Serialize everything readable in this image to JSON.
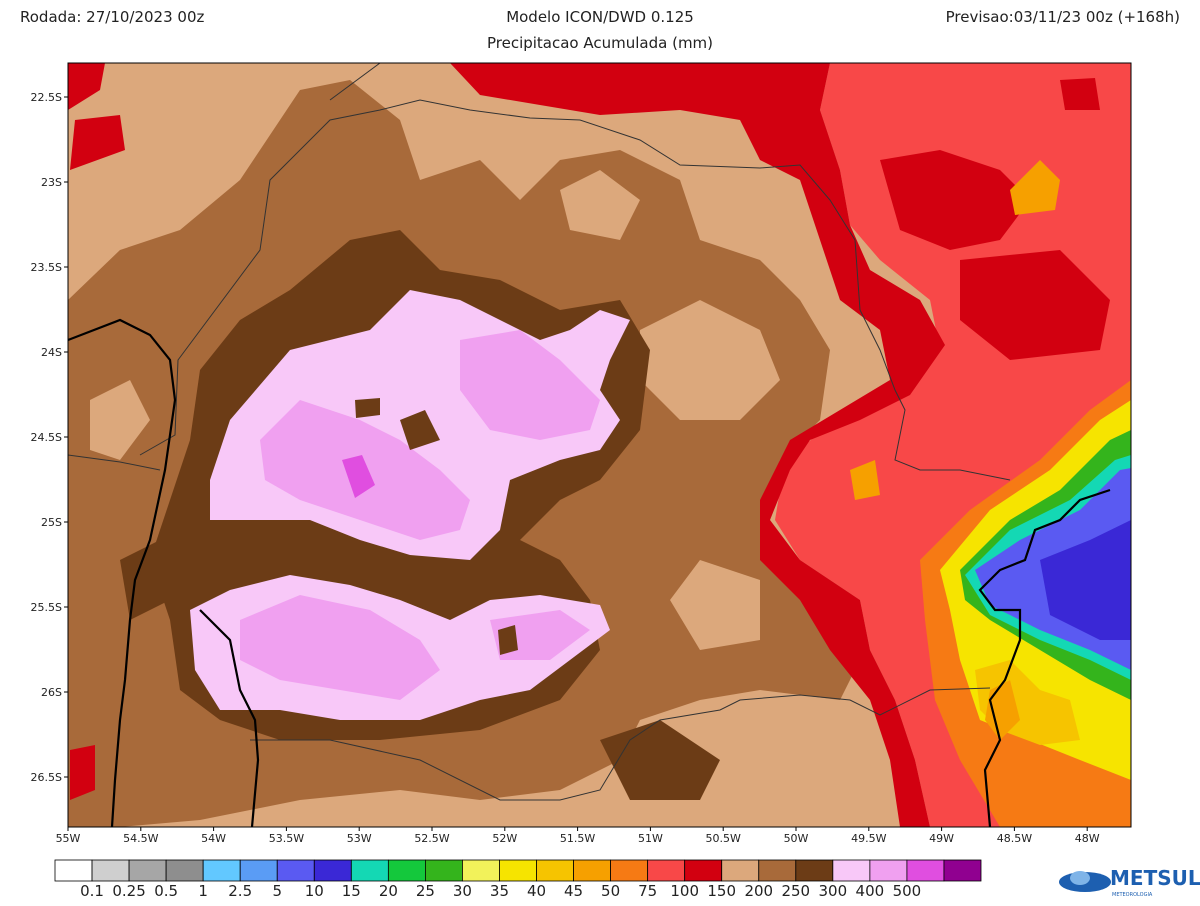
{
  "header": {
    "left": "Rodada: 27/10/2023 00z",
    "center": "Modelo ICON/DWD 0.125",
    "right": "Previsao:03/11/23 00z (+168h)",
    "subtitle": "Precipitacao Acumulada (mm)"
  },
  "map": {
    "lat_labels": [
      "22.5S",
      "23S",
      "23.5S",
      "24S",
      "24.5S",
      "25S",
      "25.5S",
      "26S",
      "26.5S"
    ],
    "lon_labels": [
      "55W",
      "54.5W",
      "54W",
      "53.5W",
      "53W",
      "52.5W",
      "52W",
      "51.5W",
      "51W",
      "50.5W",
      "50W",
      "49.5W",
      "49W",
      "48.5W",
      "48W"
    ]
  },
  "colorbar": {
    "labels": [
      "0.1",
      "0.25",
      "0.5",
      "1",
      "2.5",
      "5",
      "10",
      "15",
      "20",
      "25",
      "30",
      "35",
      "40",
      "45",
      "50",
      "75",
      "100",
      "150",
      "200",
      "250",
      "300",
      "400",
      "500"
    ],
    "colors": [
      "#ffffff",
      "#cfcfcf",
      "#a6a6a6",
      "#8e8e8e",
      "#62c8ff",
      "#5a9cf5",
      "#5a5af2",
      "#3a28d6",
      "#14d8b4",
      "#14c83c",
      "#34b41c",
      "#f2f25a",
      "#f6e400",
      "#f6c400",
      "#f6a000",
      "#f67a14",
      "#f84848",
      "#d20010",
      "#dca87c",
      "#a86a3a",
      "#6c3c16",
      "#f8c8f8",
      "#f0a0f0",
      "#e04ee0",
      "#900090"
    ]
  },
  "logo": {
    "name": "METSUL",
    "tagline": "METEOROLOGIA"
  }
}
